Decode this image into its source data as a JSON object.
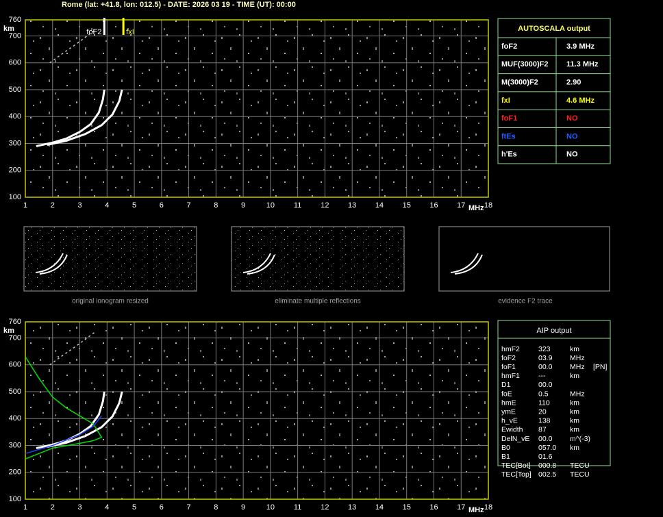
{
  "header": "Rome (lat: +41.8, lon: 012.5) - DATE: 2026 03 19 - TIME (UT): 00:00",
  "chart_data": [
    {
      "type": "line",
      "xlim": [
        1,
        18
      ],
      "ylim": [
        100,
        760
      ],
      "xticks": [
        1,
        2,
        3,
        4,
        5,
        6,
        7,
        8,
        9,
        10,
        11,
        12,
        13,
        14,
        15,
        16,
        17,
        18
      ],
      "yticks": [
        100,
        200,
        300,
        400,
        500,
        600,
        700,
        760
      ],
      "x_label": "MHz",
      "y_label": "km",
      "grid": true,
      "series": [
        {
          "color": "#ffffff",
          "x": [
            1.4,
            2,
            2.5,
            3,
            3.4,
            3.7,
            3.85,
            3.9
          ],
          "values": [
            290,
            303,
            318,
            343,
            372,
            415,
            465,
            500
          ]
        },
        {
          "color": "#ffffff",
          "x": [
            1.8,
            2.5,
            3.2,
            3.8,
            4.2,
            4.45,
            4.55
          ],
          "values": [
            295,
            310,
            335,
            368,
            408,
            458,
            500
          ]
        },
        {
          "color": "#c0c0c0",
          "x": [
            1.9,
            2.3,
            2.8,
            3.2,
            3.6
          ],
          "values": [
            600,
            630,
            665,
            695,
            725
          ]
        }
      ],
      "markers": [
        {
          "label": "foF2",
          "x": 3.9,
          "color": "#ffffff"
        },
        {
          "label": "fxI",
          "x": 4.6,
          "color": "#ffff00"
        }
      ]
    },
    {
      "type": "line",
      "xlim": [
        1,
        18
      ],
      "ylim": [
        100,
        760
      ],
      "xticks": [
        1,
        2,
        3,
        4,
        5,
        6,
        7,
        8,
        9,
        10,
        11,
        12,
        13,
        14,
        15,
        16,
        17,
        18
      ],
      "yticks": [
        100,
        200,
        300,
        400,
        500,
        600,
        700,
        760
      ],
      "x_label": "MHz",
      "y_label": "km",
      "grid": true,
      "series": [
        {
          "color": "#ffffff",
          "x": [
            1.4,
            2,
            2.5,
            3,
            3.4,
            3.7,
            3.85,
            3.9
          ],
          "values": [
            290,
            303,
            318,
            343,
            372,
            415,
            465,
            500
          ]
        },
        {
          "color": "#ffffff",
          "x": [
            1.8,
            2.5,
            3.2,
            3.8,
            4.2,
            4.45,
            4.55
          ],
          "values": [
            295,
            310,
            335,
            368,
            408,
            458,
            500
          ]
        },
        {
          "color": "#c0c0c0",
          "x": [
            1.9,
            2.3,
            2.8,
            3.2,
            3.6
          ],
          "values": [
            600,
            630,
            665,
            695,
            725
          ]
        },
        {
          "color": "#00e000",
          "x": [
            1,
            1.5,
            2,
            2.5,
            3,
            3.5,
            3.8,
            3.5,
            3,
            2,
            1
          ],
          "values": [
            630,
            550,
            480,
            440,
            410,
            380,
            330,
            318,
            308,
            290,
            250
          ]
        },
        {
          "color": "#2040ff",
          "x": [
            1,
            2,
            3,
            3.5,
            3.8
          ],
          "values": [
            270,
            300,
            340,
            372,
            410
          ]
        }
      ]
    }
  ],
  "thumbnails": [
    {
      "caption": "original ionogram resized"
    },
    {
      "caption": "eliminate multiple reflections"
    },
    {
      "caption": "evidence F2 trace"
    }
  ],
  "autoscala": {
    "title": "AUTOSCALA output",
    "rows": [
      {
        "name": "foF2",
        "value": "3.9 MHz",
        "color": "#ffffff"
      },
      {
        "name": "MUF(3000)F2",
        "value": "11.3 MHz",
        "color": "#ffffff"
      },
      {
        "name": "M(3000)F2",
        "value": "2.90",
        "color": "#ffffff"
      },
      {
        "name": "fxI",
        "value": "4.6 MHz",
        "color": "#ffff00"
      },
      {
        "name": "foF1",
        "value": "NO",
        "color": "#ff2020"
      },
      {
        "name": "ftEs",
        "value": "NO",
        "color": "#2060ff"
      },
      {
        "name": "h'Es",
        "value": "NO",
        "color": "#ffffff"
      }
    ]
  },
  "aip": {
    "title": "AIP output",
    "rows": [
      [
        "hmF2",
        "323",
        "km"
      ],
      [
        "foF2",
        "03.9",
        "MHz"
      ],
      [
        "foF1",
        "00.0",
        "MHz",
        "[PN]"
      ],
      [
        "hmF1",
        "---",
        "km"
      ],
      [
        "D1",
        "00.0"
      ],
      [
        "foE",
        "0.5",
        "MHz"
      ],
      [
        "hmE",
        "110",
        "km"
      ],
      [
        "ymE",
        "20",
        "km"
      ],
      [
        "h_vE",
        "138",
        "km"
      ],
      [
        "Ewidth",
        "87",
        "km"
      ],
      [
        "DelN_vE",
        "00.0",
        "m^(-3)"
      ],
      [
        "B0",
        "057.0",
        "km"
      ],
      [
        "B1",
        "01.6"
      ],
      [
        "TEC[Bot]",
        "000.8",
        "TECU"
      ],
      [
        "TEC[Top]",
        "002.5",
        "TECU"
      ]
    ]
  }
}
